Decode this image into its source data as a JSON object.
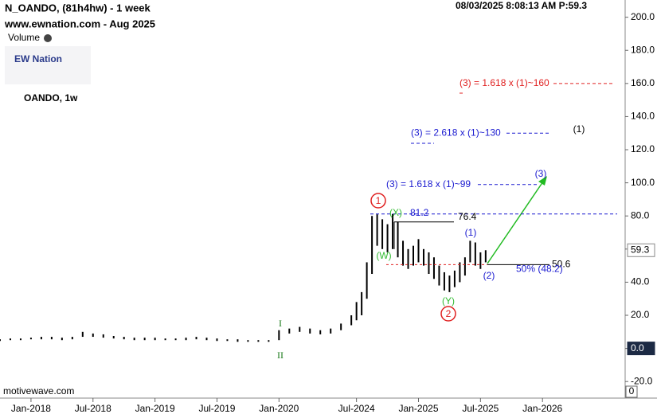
{
  "header": {
    "title": "N_OANDO, (81h4hw) - 1 week",
    "site": "www.ewnation.com  - Aug 2025",
    "volume": "Volume",
    "logo": "EW Nation",
    "symbol": "OANDO, 1w",
    "timestamp": "08/03/2025 8:08:13 AM  P:59.3",
    "footer": "motivewave.com",
    "scale_marker": "0"
  },
  "chart_data": {
    "type": "ohlc",
    "color": "#000000",
    "x": [
      0,
      1,
      2,
      3,
      4,
      5,
      6,
      7,
      8,
      9,
      10,
      11,
      12,
      13,
      14,
      15,
      16,
      17,
      18,
      19,
      20,
      21,
      22,
      23,
      24,
      25,
      26,
      27,
      28,
      29,
      30,
      31,
      32,
      33,
      34,
      34.5,
      35,
      35.5,
      36,
      36.5,
      37,
      37.5,
      38,
      38.5,
      39,
      39.5,
      40,
      40.5,
      41,
      41.5,
      42,
      42.5,
      43,
      43.5,
      44,
      44.5,
      45,
      45.5,
      46,
      46.5,
      47
    ],
    "low": [
      4.5,
      5,
      5,
      5.5,
      5.5,
      5.5,
      5,
      5.5,
      7,
      7,
      6.5,
      6,
      5.5,
      5,
      5,
      5,
      5,
      5,
      5,
      5.5,
      5,
      4.5,
      4.5,
      4,
      4,
      4,
      4,
      5,
      9,
      10,
      9,
      8.5,
      9,
      11,
      14,
      17,
      20,
      30,
      45,
      62,
      60,
      58,
      60,
      55,
      50,
      48,
      50,
      52,
      50,
      45,
      42,
      38,
      35,
      34,
      37,
      40,
      44,
      52,
      50,
      48,
      52
    ],
    "high": [
      5.5,
      6,
      6,
      6.5,
      7,
      7,
      6.5,
      7,
      10,
      9,
      8.5,
      7.5,
      7,
      6.5,
      6.5,
      6.5,
      6,
      6,
      6.5,
      7,
      6.5,
      6,
      5.5,
      5.5,
      5,
      5,
      5,
      11,
      12,
      13,
      12,
      11,
      12,
      15,
      20,
      28,
      34,
      52,
      80,
      81,
      78,
      75,
      81.2,
      76.4,
      65,
      60,
      62,
      66,
      60,
      58,
      55,
      50,
      46,
      44,
      47,
      52,
      55,
      65,
      64,
      58,
      59.3
    ],
    "xlim": [
      0,
      60.5
    ],
    "ylim": [
      -30,
      208
    ],
    "xticks": [
      {
        "value": 3,
        "label": "Jan-2018"
      },
      {
        "value": 9,
        "label": "Jul-2018"
      },
      {
        "value": 15,
        "label": "Jan-2019"
      },
      {
        "value": 21,
        "label": "Jul-2019"
      },
      {
        "value": 27,
        "label": "Jan-2020"
      },
      {
        "value": 34.5,
        "label": "Jul-2024"
      },
      {
        "value": 40.5,
        "label": "Jan-2025"
      },
      {
        "value": 46.5,
        "label": "Jul-2025"
      },
      {
        "value": 52.5,
        "label": "Jan-2026"
      }
    ],
    "yticks": [
      {
        "value": -20,
        "label": "-20.0"
      },
      {
        "value": 0,
        "label": "0.0"
      },
      {
        "value": 20,
        "label": "20.0"
      },
      {
        "value": 40,
        "label": "40.0"
      },
      {
        "value": 60,
        "label": "60.0"
      },
      {
        "value": 80,
        "label": "80.0"
      },
      {
        "value": 100,
        "label": "100.0"
      },
      {
        "value": 120,
        "label": "120.0"
      },
      {
        "value": 140,
        "label": "140.0"
      },
      {
        "value": 160,
        "label": "160.0"
      },
      {
        "value": 180,
        "label": "180.0"
      },
      {
        "value": 200,
        "label": "200.0"
      }
    ],
    "grid": false,
    "price_tags": [
      {
        "value": 59.3,
        "label": "59.3"
      },
      {
        "value": 0,
        "label": "0.0"
      }
    ],
    "levels": [
      {
        "value": 160,
        "label": "(3) = 1.618 x (1)~160",
        "color": "#e02020"
      },
      {
        "value": 130,
        "label": "(3) = 2.618 x (1)~130",
        "color": "#1a1ad0"
      },
      {
        "value": 99,
        "label": "(3) = 1.618 x (1)~99",
        "color": "#1a1ad0"
      },
      {
        "value": 81.2,
        "label": "81.2",
        "color": "#1a1ad0"
      },
      {
        "value": 76.4,
        "label": "76.4",
        "color": "#000000"
      },
      {
        "value": 50.6,
        "label": "50.6",
        "color": "#000000"
      },
      {
        "value": 48.2,
        "label": "50% (48.2)",
        "color": "#1a1ad0"
      }
    ],
    "wave_labels": [
      "1",
      "2",
      "(1)",
      "(3)",
      "(1)",
      "(2)",
      "I",
      "II",
      "(W)",
      "(X)",
      "(Y)"
    ]
  }
}
